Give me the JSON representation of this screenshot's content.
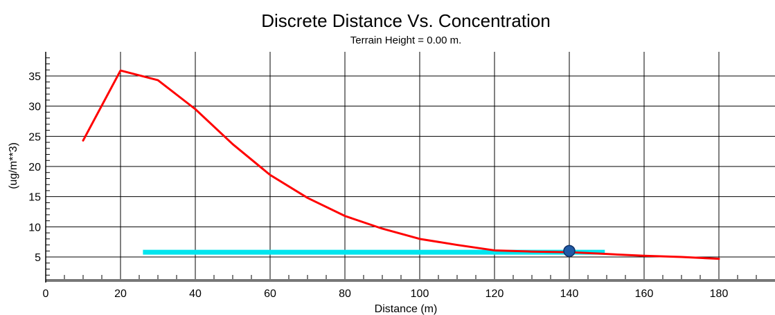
{
  "chart_data": {
    "type": "line",
    "title": "Discrete Distance Vs. Concentration",
    "subtitle": "Terrain Height = 0.00 m.",
    "xlabel": "Distance (m)",
    "ylabel": "(ug/m**3)",
    "xlim": [
      0,
      195
    ],
    "ylim": [
      1,
      39
    ],
    "x_ticks": [
      0,
      20,
      40,
      60,
      80,
      100,
      120,
      140,
      160,
      180
    ],
    "x_tick_labels": [
      "0",
      "20",
      "40",
      "60",
      "80",
      "100",
      "120",
      "140",
      "160",
      "180"
    ],
    "y_ticks": [
      5,
      10,
      15,
      20,
      25,
      30,
      35
    ],
    "y_tick_labels": [
      "5",
      "10",
      "15",
      "20",
      "25",
      "30",
      "35"
    ],
    "grid": true,
    "series": [
      {
        "color": "#ff0000",
        "x": [
          10,
          20,
          30,
          40,
          50,
          60,
          70,
          80,
          90,
          100,
          110,
          120,
          130,
          140,
          150,
          160,
          170,
          180
        ],
        "y": [
          24.3,
          35.9,
          34.3,
          29.5,
          23.7,
          18.6,
          14.8,
          11.8,
          9.7,
          8.0,
          7.0,
          6.1,
          5.9,
          5.8,
          5.5,
          5.2,
          5.0,
          4.7
        ]
      }
    ],
    "reference_bar": {
      "color": "#00e5ee",
      "x_start": 26,
      "x_end": 149.5,
      "y": 5.8
    },
    "marker": {
      "color": "#1f5aa6",
      "x": 140,
      "y": 6.0
    }
  }
}
